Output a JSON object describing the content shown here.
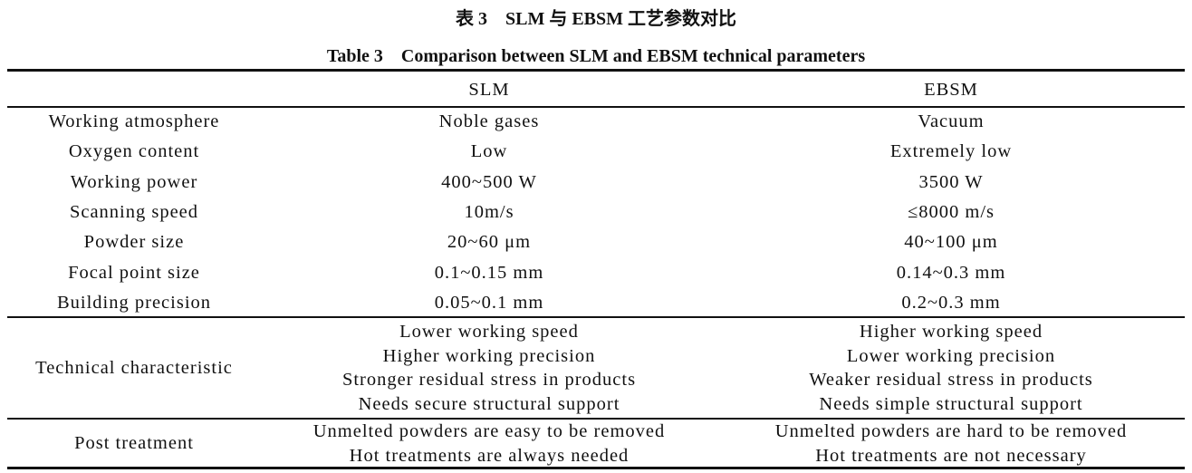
{
  "caption_cn": "表 3　SLM 与 EBSM 工艺参数对比",
  "caption_en": "Table 3　Comparison between SLM and EBSM technical parameters",
  "table": {
    "headers": [
      "",
      "SLM",
      "EBSM"
    ],
    "rows": [
      {
        "label": "Working atmosphere",
        "slm": "Noble gases",
        "ebsm": "Vacuum"
      },
      {
        "label": "Oxygen content",
        "slm": "Low",
        "ebsm": "Extremely low"
      },
      {
        "label": "Working power",
        "slm": "400~500 W",
        "ebsm": "3500 W"
      },
      {
        "label": "Scanning speed",
        "slm": "10m/s",
        "ebsm": "≤8000 m/s"
      },
      {
        "label": "Powder size",
        "slm": "20~60 μm",
        "ebsm": "40~100 μm"
      },
      {
        "label": "Focal point size",
        "slm": "0.1~0.15 mm",
        "ebsm": "0.14~0.3 mm"
      },
      {
        "label": "Building precision",
        "slm": "0.05~0.1 mm",
        "ebsm": "0.2~0.3 mm"
      }
    ],
    "technical": {
      "label": "Technical characteristic",
      "slm": [
        "Lower working speed",
        "Higher working precision",
        "Stronger residual stress in products",
        "Needs secure structural support"
      ],
      "ebsm": [
        "Higher working speed",
        "Lower working precision",
        "Weaker residual stress in products",
        "Needs simple structural support"
      ]
    },
    "post": {
      "label": "Post treatment",
      "slm": [
        "Unmelted powders are easy to be removed",
        "Hot treatments are always needed"
      ],
      "ebsm": [
        "Unmelted powders are hard to be removed",
        "Hot treatments are not necessary"
      ]
    }
  }
}
